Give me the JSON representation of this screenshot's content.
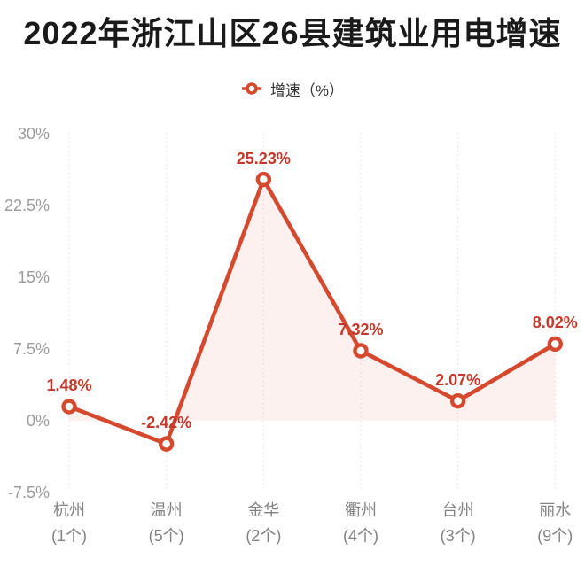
{
  "title": "2022年浙江山区26县建筑业用电增速",
  "legend": {
    "label": "增速（%）"
  },
  "colors": {
    "line": "#d5492e",
    "value_label": "#c5382c",
    "area_fill": "rgba(214,74,47,0.08)",
    "grid": "#dedede",
    "y_axis_text": "#9b9b9b",
    "x_axis_text": "#828282",
    "title_text": "#1a1a1a",
    "background": "#ffffff"
  },
  "chart_data": {
    "type": "line",
    "title": "2022年浙江山区26县建筑业用电增速",
    "legend_entries": [
      "增速（%）"
    ],
    "legend_position": "top",
    "categories": [
      "杭州",
      "温州",
      "金华",
      "衢州",
      "台州",
      "丽水"
    ],
    "category_sublabels": [
      "(1个)",
      "(5个)",
      "(2个)",
      "(4个)",
      "(3个)",
      "(9个)"
    ],
    "values": [
      1.48,
      -2.42,
      25.23,
      7.32,
      2.07,
      8.02
    ],
    "data_labels": [
      "1.48%",
      "-2.42%",
      "25.23%",
      "7.32%",
      "2.07%",
      "8.02%"
    ],
    "yticks": [
      -7.5,
      0,
      7.5,
      15,
      22.5,
      30
    ],
    "ytick_labels": [
      "-7.5%",
      "0%",
      "7.5%",
      "15%",
      "22.5%",
      "30%"
    ],
    "ylim": [
      -7.5,
      30
    ],
    "xlabel": "",
    "ylabel": "",
    "grid": "vertical-dotted",
    "area": true,
    "marker": "empty-circle"
  }
}
